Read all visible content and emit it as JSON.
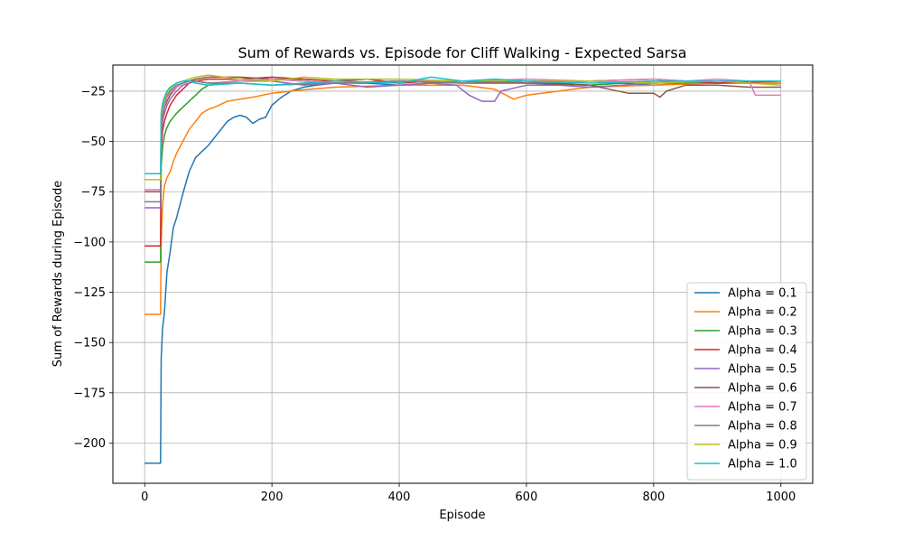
{
  "chart_data": {
    "type": "line",
    "title": "Sum of Rewards vs. Episode for Cliff Walking - Expected Sarsa",
    "xlabel": "Episode",
    "ylabel": "Sum of Rewards during Episode",
    "xlim": [
      -50,
      1050
    ],
    "ylim": [
      -220,
      -12
    ],
    "xticks": [
      0,
      200,
      400,
      600,
      800,
      1000
    ],
    "yticks": [
      -200,
      -175,
      -150,
      -125,
      -100,
      -75,
      -50,
      -25
    ],
    "grid": true,
    "legend_position": "lower-right",
    "series": [
      {
        "name": "Alpha = 0.1",
        "color": "#1f77b4",
        "x": [
          0,
          25,
          26,
          28,
          31,
          35,
          40,
          45,
          50,
          55,
          60,
          70,
          80,
          90,
          100,
          110,
          120,
          130,
          140,
          150,
          160,
          170,
          180,
          190,
          200,
          215,
          230,
          250,
          270,
          300,
          350,
          400,
          450,
          500,
          550,
          600,
          650,
          700,
          750,
          800,
          850,
          900,
          950,
          1000
        ],
        "y": [
          -210,
          -210,
          -158,
          -143,
          -135,
          -115,
          -105,
          -93,
          -88,
          -82,
          -76,
          -65,
          -58,
          -55,
          -52,
          -48,
          -44,
          -40,
          -38,
          -37,
          -38,
          -41,
          -39,
          -38,
          -32,
          -28,
          -25,
          -23,
          -22,
          -21,
          -21,
          -22,
          -21,
          -20,
          -21,
          -20,
          -21,
          -22,
          -21,
          -22,
          -21,
          -21,
          -21,
          -21
        ]
      },
      {
        "name": "Alpha = 0.2",
        "color": "#ff7f0e",
        "x": [
          0,
          25,
          26,
          28,
          31,
          35,
          40,
          45,
          50,
          60,
          70,
          80,
          90,
          100,
          110,
          130,
          150,
          170,
          200,
          230,
          260,
          300,
          400,
          500,
          550,
          580,
          600,
          650,
          700,
          800,
          900,
          1000
        ],
        "y": [
          -136,
          -136,
          -100,
          -82,
          -72,
          -68,
          -65,
          -60,
          -56,
          -50,
          -44,
          -40,
          -36,
          -34,
          -33,
          -30,
          -29,
          -28,
          -26,
          -25,
          -24,
          -23,
          -22,
          -22,
          -24,
          -29,
          -27,
          -25,
          -23,
          -22,
          -21,
          -21
        ]
      },
      {
        "name": "Alpha = 0.3",
        "color": "#2ca02c",
        "x": [
          0,
          25,
          26,
          28,
          31,
          35,
          40,
          50,
          60,
          70,
          80,
          90,
          100,
          120,
          140,
          170,
          200,
          250,
          300,
          350,
          400,
          450,
          500,
          600,
          700,
          800,
          900,
          1000
        ],
        "y": [
          -110,
          -110,
          -62,
          -53,
          -47,
          -43,
          -40,
          -36,
          -33,
          -30,
          -27,
          -24,
          -22,
          -21,
          -20,
          -20,
          -19,
          -19,
          -20,
          -19,
          -21,
          -20,
          -20,
          -21,
          -22,
          -20,
          -21,
          -20
        ]
      },
      {
        "name": "Alpha = 0.4",
        "color": "#d62728",
        "x": [
          0,
          25,
          26,
          28,
          31,
          35,
          40,
          50,
          60,
          70,
          80,
          100,
          150,
          200,
          250,
          300,
          350,
          400,
          450,
          500,
          600,
          700,
          800,
          900,
          1000
        ],
        "y": [
          -102,
          -102,
          -53,
          -45,
          -40,
          -36,
          -32,
          -27,
          -24,
          -21,
          -20,
          -19,
          -19,
          -18,
          -19,
          -20,
          -19,
          -21,
          -20,
          -20,
          -21,
          -20,
          -19,
          -21,
          -20
        ]
      },
      {
        "name": "Alpha = 0.5",
        "color": "#9467bd",
        "x": [
          0,
          25,
          26,
          28,
          31,
          35,
          40,
          50,
          60,
          70,
          80,
          100,
          150,
          200,
          250,
          300,
          350,
          400,
          450,
          490,
          510,
          530,
          550,
          560,
          600,
          650,
          700,
          800,
          900,
          1000
        ],
        "y": [
          -83,
          -83,
          -48,
          -40,
          -36,
          -32,
          -29,
          -25,
          -22,
          -21,
          -20,
          -21,
          -20,
          -20,
          -22,
          -21,
          -23,
          -22,
          -21,
          -22,
          -27,
          -30,
          -30,
          -25,
          -22,
          -22,
          -23,
          -21,
          -20,
          -20
        ]
      },
      {
        "name": "Alpha = 0.6",
        "color": "#8c564b",
        "x": [
          0,
          25,
          26,
          28,
          31,
          35,
          40,
          50,
          60,
          70,
          80,
          100,
          150,
          200,
          250,
          300,
          400,
          500,
          600,
          700,
          760,
          800,
          810,
          820,
          850,
          900,
          950,
          1000
        ],
        "y": [
          -75,
          -75,
          -45,
          -38,
          -33,
          -30,
          -27,
          -23,
          -21,
          -20,
          -19,
          -18,
          -18,
          -19,
          -20,
          -21,
          -20,
          -21,
          -21,
          -22,
          -26,
          -26,
          -28,
          -25,
          -22,
          -22,
          -23,
          -23
        ]
      },
      {
        "name": "Alpha = 0.7",
        "color": "#e377c2",
        "x": [
          0,
          25,
          26,
          28,
          31,
          35,
          40,
          50,
          60,
          70,
          80,
          100,
          150,
          200,
          300,
          400,
          500,
          600,
          700,
          800,
          850,
          900,
          950,
          960,
          1000
        ],
        "y": [
          -74,
          -74,
          -42,
          -36,
          -32,
          -28,
          -26,
          -23,
          -21,
          -20,
          -20,
          -21,
          -20,
          -19,
          -21,
          -20,
          -20,
          -19,
          -20,
          -19,
          -20,
          -19,
          -20,
          -27,
          -27
        ]
      },
      {
        "name": "Alpha = 0.8",
        "color": "#7f7f7f",
        "x": [
          0,
          25,
          26,
          28,
          31,
          35,
          40,
          50,
          60,
          70,
          80,
          100,
          150,
          200,
          300,
          400,
          500,
          600,
          700,
          800,
          900,
          1000
        ],
        "y": [
          -80,
          -80,
          -40,
          -34,
          -30,
          -27,
          -25,
          -22,
          -21,
          -20,
          -20,
          -21,
          -21,
          -22,
          -21,
          -20,
          -21,
          -21,
          -20,
          -21,
          -20,
          -20
        ]
      },
      {
        "name": "Alpha = 0.9",
        "color": "#bcbd22",
        "x": [
          0,
          25,
          26,
          28,
          31,
          35,
          40,
          50,
          60,
          70,
          80,
          100,
          150,
          200,
          250,
          300,
          400,
          500,
          600,
          700,
          800,
          900,
          1000
        ],
        "y": [
          -69,
          -69,
          -38,
          -33,
          -29,
          -26,
          -24,
          -21,
          -20,
          -19,
          -18,
          -17,
          -19,
          -20,
          -18,
          -19,
          -19,
          -20,
          -20,
          -20,
          -21,
          -20,
          -22
        ]
      },
      {
        "name": "Alpha = 1.0",
        "color": "#17becf",
        "x": [
          0,
          25,
          26,
          28,
          31,
          35,
          40,
          50,
          60,
          70,
          80,
          100,
          150,
          200,
          300,
          400,
          450,
          500,
          550,
          600,
          700,
          800,
          900,
          1000
        ],
        "y": [
          -66,
          -66,
          -36,
          -31,
          -28,
          -25,
          -23,
          -21,
          -20,
          -20,
          -21,
          -22,
          -21,
          -22,
          -20,
          -21,
          -18,
          -20,
          -19,
          -20,
          -21,
          -20,
          -20,
          -20
        ]
      }
    ]
  }
}
